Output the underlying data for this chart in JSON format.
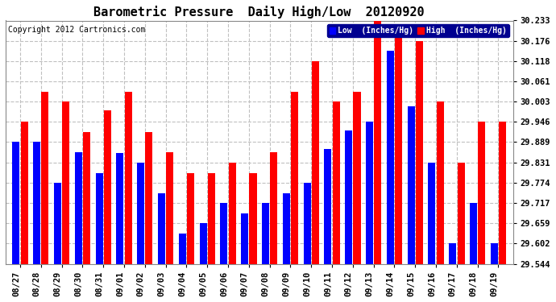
{
  "title": "Barometric Pressure  Daily High/Low  20120920",
  "copyright": "Copyright 2012 Cartronics.com",
  "legend_low": "Low  (Inches/Hg)",
  "legend_high": "High  (Inches/Hg)",
  "dates": [
    "08/27",
    "08/28",
    "08/29",
    "08/30",
    "08/31",
    "09/01",
    "09/02",
    "09/03",
    "09/04",
    "09/05",
    "09/06",
    "09/07",
    "09/08",
    "09/09",
    "09/10",
    "09/11",
    "09/12",
    "09/13",
    "09/14",
    "09/15",
    "09/16",
    "09/17",
    "09/18",
    "09/19"
  ],
  "low_values": [
    29.889,
    29.889,
    29.774,
    29.86,
    29.8,
    29.857,
    29.831,
    29.745,
    29.631,
    29.66,
    29.717,
    29.688,
    29.717,
    29.745,
    29.774,
    29.869,
    29.921,
    29.946,
    30.148,
    29.99,
    29.831,
    29.602,
    29.717,
    29.602
  ],
  "high_values": [
    29.946,
    30.032,
    30.003,
    29.917,
    29.978,
    30.032,
    29.917,
    29.86,
    29.802,
    29.802,
    29.831,
    29.802,
    29.86,
    30.032,
    30.118,
    30.003,
    30.032,
    30.233,
    30.205,
    30.176,
    30.003,
    29.831,
    29.946,
    29.946
  ],
  "low_color": "#0000ff",
  "high_color": "#ff0000",
  "bg_color": "#ffffff",
  "ymin": 29.544,
  "ymax": 30.233,
  "yticks": [
    29.544,
    29.602,
    29.659,
    29.717,
    29.774,
    29.831,
    29.889,
    29.946,
    30.003,
    30.061,
    30.118,
    30.176,
    30.233
  ],
  "grid_color": "#c0c0c0",
  "title_fontsize": 11,
  "copyright_fontsize": 7,
  "tick_fontsize": 7.5,
  "bar_width": 0.35,
  "bar_gap": 0.05
}
